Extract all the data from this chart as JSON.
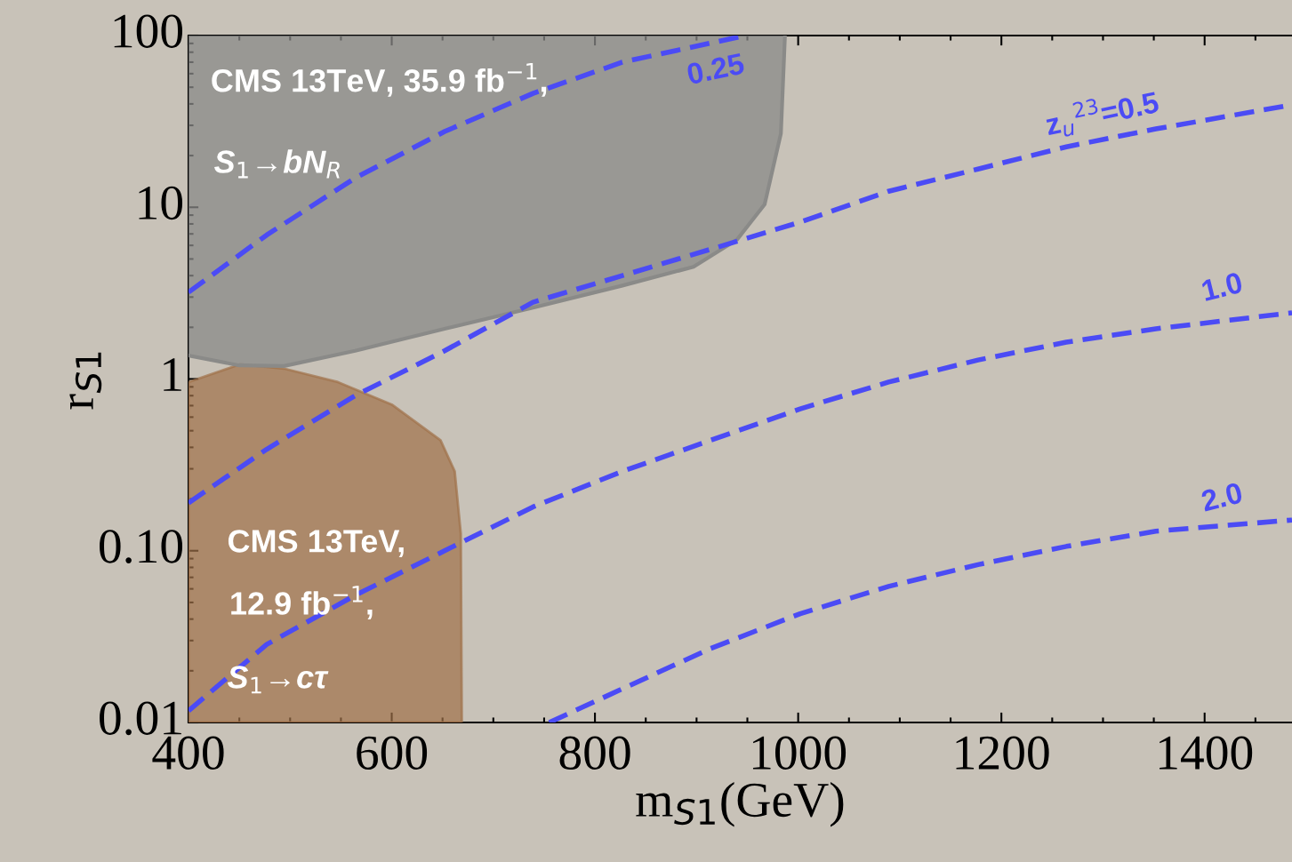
{
  "chart_data": {
    "type": "line",
    "xlabel": "m$_{S1}$(GeV)",
    "ylabel": "r$_{S1}$",
    "log": "y",
    "grid": false,
    "line_style": "dashed",
    "marker": "none",
    "xlim": [
      400,
      1486
    ],
    "xticks": [
      400,
      600,
      800,
      1000,
      1200,
      1400
    ],
    "ylim": [
      0.01,
      100
    ],
    "yticks": [
      {
        "value": 0.01,
        "label": "0.01"
      },
      {
        "value": 0.1,
        "label": "0.10"
      },
      1,
      10,
      100
    ],
    "series": [
      {
        "type": "area",
        "color": "#a07048",
        "x": [
          400,
          451,
          494,
          547,
          600,
          648,
          662,
          668,
          669
        ],
        "values": [
          0.96,
          1.22,
          1.15,
          0.96,
          0.71,
          0.44,
          0.29,
          0.126,
          0.01
        ]
      },
      {
        "color": "#4b4bf5",
        "x": [
          400,
          477,
          564,
          652,
          739,
          827,
          948
        ],
        "values": [
          3.2,
          6.9,
          14.8,
          27.6,
          46,
          70,
          100
        ]
      },
      {
        "color": "#4b4bf5",
        "x": [
          400,
          477,
          564,
          652,
          739,
          827,
          914,
          1002,
          1089,
          1177,
          1264,
          1352,
          1486
        ],
        "values": [
          0.19,
          0.39,
          0.8,
          1.46,
          2.8,
          4.0,
          5.7,
          8.2,
          12.4,
          16.7,
          22.5,
          28.6,
          39.5
        ]
      },
      {
        "color": "#4b4bf5",
        "x": [
          400,
          477,
          564,
          652,
          739,
          827,
          914,
          1002,
          1089,
          1177,
          1264,
          1352,
          1486
        ],
        "values": [
          0.0117,
          0.0285,
          0.055,
          0.1,
          0.18,
          0.29,
          0.44,
          0.67,
          0.96,
          1.29,
          1.64,
          1.96,
          2.43
        ]
      },
      {
        "color": "#4b4bf5",
        "x": [
          755,
          827,
          914,
          1002,
          1089,
          1177,
          1264,
          1352,
          1486
        ],
        "values": [
          0.01,
          0.0157,
          0.027,
          0.043,
          0.062,
          0.083,
          0.106,
          0.13,
          0.151
        ]
      },
      {
        "type": "line",
        "line_style": "solid",
        "color": "#8a8a88",
        "x": [
          400,
          450,
          494,
          564,
          652,
          739,
          827,
          897,
          940,
          967,
          983,
          987
        ],
        "values": [
          1.37,
          1.2,
          1.19,
          1.46,
          1.96,
          2.6,
          3.5,
          4.5,
          6.5,
          10.4,
          26.9,
          100
        ],
        "lower": [
          1.37,
          1.2,
          1.19,
          1.46,
          1.96,
          2.6,
          3.5,
          4.5,
          6.5,
          10.4,
          26.9,
          100
        ],
        "upper": [
          100,
          100,
          100,
          100,
          100,
          100,
          100,
          100,
          100,
          100,
          100,
          100
        ]
      }
    ],
    "annotations": [
      "CMS 13TeV, 35.9 fb$^{−1}$,",
      "S$_{1}$→bN$_{R}$",
      "CMS 13TeV,",
      "12.9 fb$^{−1}$,",
      "S$_{1}$→cτ",
      "0.25",
      "z$_{u}$$^{23}$=0.5",
      "1.0",
      "2.0"
    ]
  }
}
